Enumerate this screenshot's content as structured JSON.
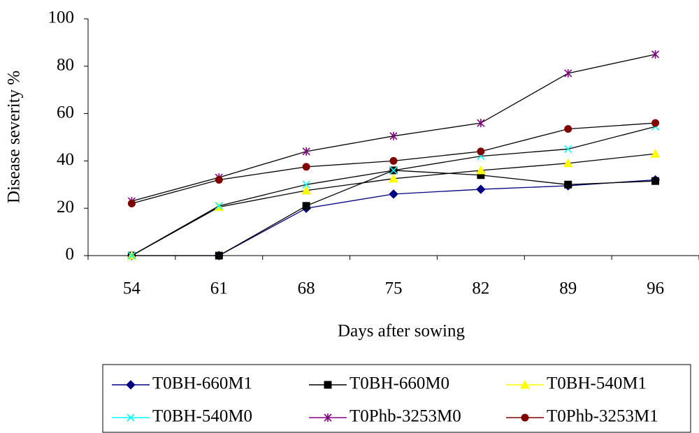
{
  "chart_data": {
    "type": "line",
    "y_label": "Disease severity %",
    "x_label": "Days after sowing",
    "categories": [
      "54",
      "61",
      "68",
      "75",
      "82",
      "89",
      "96"
    ],
    "ylim": [
      0,
      100
    ],
    "yticks": [
      0,
      20,
      40,
      60,
      80,
      100
    ],
    "series": [
      {
        "name": "T0BH-660M1",
        "color": "#000080",
        "line_color": "#000080",
        "marker": "diamond",
        "values": [
          0,
          0,
          20,
          26,
          28,
          29.5,
          32
        ]
      },
      {
        "name": "T0BH-660M0",
        "color": "#000000",
        "line_color": "#000000",
        "marker": "square",
        "values": [
          0,
          0,
          21,
          36,
          34,
          30,
          31.5
        ]
      },
      {
        "name": "T0BH-540M1",
        "color": "#ffff00",
        "line_color": "#000000",
        "marker": "triangle",
        "values": [
          0,
          20.5,
          27.5,
          32.5,
          36,
          39,
          43
        ]
      },
      {
        "name": "T0BH-540M0",
        "color": "#00ffff",
        "line_color": "#000000",
        "marker": "x",
        "values": [
          0,
          21,
          30,
          36,
          42,
          45,
          54.5
        ]
      },
      {
        "name": "T0Phb-3253M0",
        "color": "#800080",
        "line_color": "#000000",
        "marker": "star",
        "values": [
          23,
          33,
          44,
          50.5,
          56,
          77,
          85
        ]
      },
      {
        "name": "T0Phb-3253M1",
        "color": "#800000",
        "line_color": "#000000",
        "marker": "circle",
        "values": [
          22,
          32,
          37.5,
          40,
          44,
          53.5,
          56
        ]
      }
    ]
  }
}
